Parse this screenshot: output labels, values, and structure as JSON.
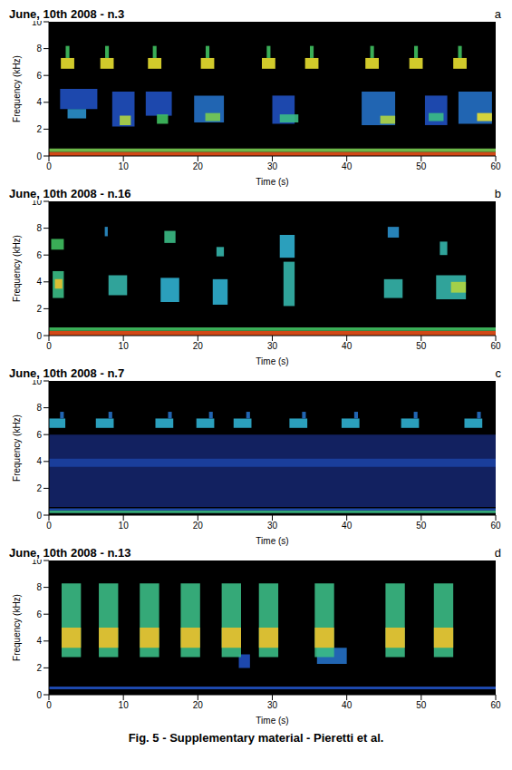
{
  "caption": "Fig. 5 - Supplementary material - Pieretti et al.",
  "chart_data": [
    {
      "type": "heatmap",
      "title": "June, 10th 2008 - n.3",
      "panel": "a",
      "x_label": "Time (s)",
      "y_label": "Frequency (kHz)",
      "xlim": [
        0,
        60
      ],
      "xticks": [
        0,
        10,
        20,
        30,
        40,
        50,
        60
      ],
      "ylim": [
        0,
        10
      ],
      "yticks": [
        0,
        2,
        4,
        6,
        8,
        10
      ],
      "cells": [
        [
          0,
          60,
          0,
          0.3,
          0.95
        ],
        [
          0,
          60,
          0.3,
          0.55,
          0.65
        ],
        [
          1.6,
          3.4,
          6.5,
          7.3,
          0.75
        ],
        [
          2.25,
          2.75,
          7.3,
          8.2,
          0.6
        ],
        [
          6.9,
          8.7,
          6.5,
          7.3,
          0.75
        ],
        [
          7.55,
          8.05,
          7.3,
          8.2,
          0.6
        ],
        [
          13.3,
          15.1,
          6.5,
          7.3,
          0.75
        ],
        [
          13.95,
          14.45,
          7.3,
          8.2,
          0.6
        ],
        [
          20.4,
          22.2,
          6.5,
          7.3,
          0.75
        ],
        [
          21.05,
          21.55,
          7.3,
          8.2,
          0.6
        ],
        [
          28.6,
          30.4,
          6.5,
          7.3,
          0.75
        ],
        [
          29.25,
          29.75,
          7.3,
          8.2,
          0.6
        ],
        [
          34.4,
          36.2,
          6.5,
          7.3,
          0.75
        ],
        [
          35.05,
          35.55,
          7.3,
          8.2,
          0.6
        ],
        [
          42.5,
          44.3,
          6.5,
          7.3,
          0.75
        ],
        [
          43.15,
          43.65,
          7.3,
          8.2,
          0.6
        ],
        [
          48.4,
          50.2,
          6.5,
          7.3,
          0.75
        ],
        [
          49.05,
          49.55,
          7.3,
          8.2,
          0.6
        ],
        [
          54.3,
          56.1,
          6.5,
          7.3,
          0.75
        ],
        [
          54.95,
          55.45,
          7.3,
          8.2,
          0.6
        ],
        [
          1.5,
          6.5,
          3.5,
          5.0,
          0.3
        ],
        [
          2.5,
          5,
          2.8,
          3.5,
          0.4
        ],
        [
          8.5,
          11.5,
          2.2,
          4.8,
          0.3
        ],
        [
          9.5,
          11,
          2.3,
          3.0,
          0.7
        ],
        [
          13,
          16.5,
          3,
          4.8,
          0.3
        ],
        [
          14.5,
          16,
          2.4,
          3.1,
          0.6
        ],
        [
          19.5,
          23.5,
          2.5,
          4.5,
          0.35
        ],
        [
          21,
          23,
          2.6,
          3.2,
          0.65
        ],
        [
          30,
          33,
          2.4,
          4.5,
          0.3
        ],
        [
          31,
          33.5,
          2.5,
          3.1,
          0.55
        ],
        [
          42,
          46.5,
          2.3,
          4.8,
          0.35
        ],
        [
          44.5,
          46.5,
          2.4,
          3.0,
          0.7
        ],
        [
          50.5,
          53.5,
          2.3,
          4.5,
          0.3
        ],
        [
          51,
          53,
          2.6,
          3.2,
          0.55
        ],
        [
          55,
          59.5,
          2.4,
          4.8,
          0.35
        ],
        [
          57.5,
          59.5,
          2.6,
          3.2,
          0.75
        ]
      ]
    },
    {
      "type": "heatmap",
      "title": "June, 10th 2008 - n.16",
      "panel": "b",
      "x_label": "Time (s)",
      "y_label": "Frequency (kHz)",
      "xlim": [
        0,
        60
      ],
      "xticks": [
        0,
        10,
        20,
        30,
        40,
        50,
        60
      ],
      "ylim": [
        0,
        10
      ],
      "yticks": [
        0,
        2,
        4,
        6,
        8,
        10
      ],
      "cells": [
        [
          0,
          60,
          0,
          0.35,
          0.95
        ],
        [
          0,
          60,
          0.35,
          0.6,
          0.6
        ],
        [
          0.3,
          2,
          6.4,
          7.2,
          0.6
        ],
        [
          0.5,
          2,
          2.8,
          4.8,
          0.55
        ],
        [
          0.8,
          1.8,
          3.5,
          4.2,
          0.8
        ],
        [
          7.5,
          7.9,
          7.4,
          8.1,
          0.4
        ],
        [
          8,
          10.5,
          3,
          4.5,
          0.5
        ],
        [
          15.5,
          17,
          6.9,
          7.8,
          0.55
        ],
        [
          15,
          17.5,
          2.5,
          4.3,
          0.45
        ],
        [
          22.5,
          23.5,
          5.9,
          6.6,
          0.5
        ],
        [
          22,
          24,
          2.3,
          4.2,
          0.45
        ],
        [
          31,
          33,
          5.8,
          7.5,
          0.45
        ],
        [
          31.5,
          33,
          2.2,
          5.5,
          0.5
        ],
        [
          45.5,
          47,
          7.3,
          8.1,
          0.4
        ],
        [
          45,
          47.5,
          2.8,
          4.2,
          0.5
        ],
        [
          52.5,
          53.5,
          6,
          7,
          0.5
        ],
        [
          52,
          56,
          2.7,
          4.5,
          0.5
        ],
        [
          54,
          56,
          3.2,
          4,
          0.7
        ]
      ]
    },
    {
      "type": "heatmap",
      "title": "June, 10th 2008 - n.7",
      "panel": "c",
      "x_label": "Time (s)",
      "y_label": "Frequency (kHz)",
      "xlim": [
        0,
        60
      ],
      "xticks": [
        0,
        10,
        20,
        30,
        40,
        50,
        60
      ],
      "ylim": [
        0,
        10
      ],
      "yticks": [
        0,
        2,
        4,
        6,
        8,
        10
      ],
      "cells": [
        [
          0,
          60,
          0.15,
          0.35,
          0.55
        ],
        [
          0,
          60,
          0.35,
          0.5,
          0.3
        ],
        [
          0,
          60,
          0.6,
          6,
          0.07
        ],
        [
          0,
          60,
          3.6,
          4.2,
          0.22
        ],
        [
          0,
          2.2,
          6.5,
          7.2,
          0.45
        ],
        [
          1.5,
          2,
          7.2,
          7.7,
          0.35
        ],
        [
          6.3,
          8.7,
          6.5,
          7.2,
          0.45
        ],
        [
          8,
          8.5,
          7.2,
          7.7,
          0.35
        ],
        [
          14.3,
          16.7,
          6.5,
          7.2,
          0.45
        ],
        [
          16,
          16.5,
          7.2,
          7.7,
          0.35
        ],
        [
          19.8,
          22.2,
          6.5,
          7.2,
          0.45
        ],
        [
          21.5,
          22,
          7.2,
          7.7,
          0.35
        ],
        [
          24.8,
          27.2,
          6.5,
          7.2,
          0.45
        ],
        [
          26.5,
          27,
          7.2,
          7.7,
          0.35
        ],
        [
          32.3,
          34.7,
          6.5,
          7.2,
          0.45
        ],
        [
          34,
          34.5,
          7.2,
          7.7,
          0.35
        ],
        [
          39.3,
          41.7,
          6.5,
          7.2,
          0.45
        ],
        [
          41,
          41.5,
          7.2,
          7.7,
          0.35
        ],
        [
          47.3,
          49.7,
          6.5,
          7.2,
          0.45
        ],
        [
          49,
          49.5,
          7.2,
          7.7,
          0.35
        ],
        [
          55.8,
          58.2,
          6.5,
          7.2,
          0.45
        ],
        [
          57.5,
          58,
          7.2,
          7.7,
          0.35
        ]
      ]
    },
    {
      "type": "heatmap",
      "title": "June, 10th 2008 - n.13",
      "panel": "d",
      "x_label": "Time (s)",
      "y_label": "Frequency (kHz)",
      "xlim": [
        0,
        60
      ],
      "xticks": [
        0,
        10,
        20,
        30,
        40,
        50,
        60
      ],
      "ylim": [
        0,
        10
      ],
      "yticks": [
        0,
        2,
        4,
        6,
        8,
        10
      ],
      "cells": [
        [
          0,
          60,
          0.4,
          0.6,
          0.3
        ],
        [
          36,
          40,
          2.3,
          3.5,
          0.35
        ],
        [
          25.5,
          27,
          2,
          3,
          0.3
        ],
        [
          1.7,
          4.3,
          2.8,
          8.3,
          0.55
        ],
        [
          1.7,
          4.3,
          3.5,
          5,
          0.8
        ],
        [
          6.7,
          9.3,
          2.8,
          8.3,
          0.55
        ],
        [
          6.7,
          9.3,
          3.5,
          5,
          0.8
        ],
        [
          12.2,
          14.8,
          2.8,
          8.3,
          0.55
        ],
        [
          12.2,
          14.8,
          3.5,
          5,
          0.8
        ],
        [
          17.7,
          20.3,
          2.8,
          8.3,
          0.55
        ],
        [
          17.7,
          20.3,
          3.5,
          5,
          0.8
        ],
        [
          23.2,
          25.8,
          2.8,
          8.3,
          0.55
        ],
        [
          23.2,
          25.8,
          3.5,
          5,
          0.8
        ],
        [
          28.2,
          30.8,
          2.8,
          8.3,
          0.55
        ],
        [
          28.2,
          30.8,
          3.5,
          5,
          0.8
        ],
        [
          35.7,
          38.3,
          2.8,
          8.3,
          0.55
        ],
        [
          35.7,
          38.3,
          3.5,
          5,
          0.8
        ],
        [
          45.2,
          47.8,
          2.8,
          8.3,
          0.55
        ],
        [
          45.2,
          47.8,
          3.5,
          5,
          0.8
        ],
        [
          51.7,
          54.3,
          2.8,
          8.3,
          0.55
        ],
        [
          51.7,
          54.3,
          3.5,
          5,
          0.8
        ]
      ]
    }
  ]
}
